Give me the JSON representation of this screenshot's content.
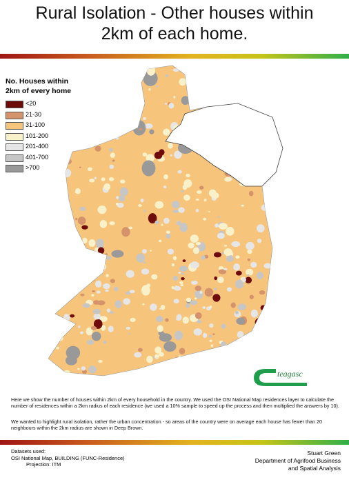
{
  "title_lines": [
    "Rural Isolation - Other houses within",
    "2km of each home."
  ],
  "legend": {
    "title_lines": [
      "No. Houses within",
      "2km of every home"
    ],
    "items": [
      {
        "label": "<20",
        "color": "#6e0b0b"
      },
      {
        "label": "21-30",
        "color": "#d4936b"
      },
      {
        "label": "31-100",
        "color": "#f7c47c"
      },
      {
        "label": "101-200",
        "color": "#f8f1c9"
      },
      {
        "label": "201-400",
        "color": "#e6e6e6"
      },
      {
        "label": "401-700",
        "color": "#c6c6c6"
      },
      {
        "label": ">700",
        "color": "#999999"
      }
    ]
  },
  "logo": "teagasc",
  "description": [
    "Here we show the number of houses within 2km of every household in the country. We used the OSI National Map residences layer to calculate the number of residences within a 2km  radius of each residence (we used a 10% sample to speed up the process and then multiplied the answers by 10).",
    "We wanted to highlight rural isolation, rather the urban concentration - so areas of the country were on average each house has fewer than 20 neighbours within the 2km radius are shown in Deep Brown."
  ],
  "footer": {
    "left": [
      "Datasets used:",
      "OSI National Map, BUILDING (FUNC-Residence)",
      "Projection: ITM"
    ],
    "right": [
      "Stuart Green",
      "Department of Agrifood Business",
      "and Spatial Analysis"
    ]
  }
}
